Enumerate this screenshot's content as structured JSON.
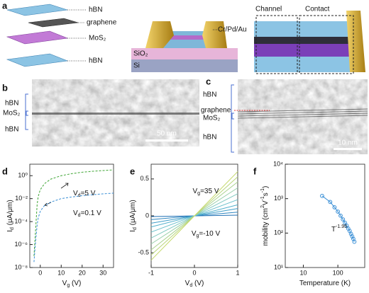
{
  "panel_labels": [
    "a",
    "b",
    "c",
    "d",
    "e",
    "f"
  ],
  "panel_a": {
    "stack_labels": [
      "hBN",
      "graphene",
      "MoS₂",
      "hBN"
    ],
    "device_labels": [
      "Cr/Pd/Au",
      "SiO₂",
      "Si"
    ],
    "region_labels": [
      "Channel",
      "Contact"
    ]
  },
  "panel_b": {
    "layer_labels": [
      "hBN",
      "MoS₂",
      "hBN"
    ],
    "scale_bar": "50 nm"
  },
  "panel_c": {
    "layer_labels": [
      "hBN",
      "graphene",
      "MoS₂",
      "hBN"
    ],
    "scale_bar": "10 nm"
  },
  "chart_data": [
    {
      "type": "line",
      "xlim": [
        -5,
        35
      ],
      "xticks": [
        0,
        10,
        20,
        30
      ],
      "ylim": [
        1e-08,
        10
      ],
      "ylog": true,
      "yticks": [
        {
          "value": 1,
          "label": "10⁰"
        },
        {
          "value": 0.01,
          "label": "10⁻²"
        },
        {
          "value": 0.0001,
          "label": "10⁻⁴"
        },
        {
          "value": 1e-06,
          "label": "10⁻⁶"
        },
        {
          "value": 1e-08,
          "label": "10⁻⁸"
        }
      ],
      "x_label": [
        {
          "text": "V"
        },
        {
          "sub": "g"
        },
        {
          "text": " (V)"
        }
      ],
      "y_label": [
        {
          "text": "I"
        },
        {
          "sub": "d"
        },
        {
          "text": " (μA/μm)"
        }
      ],
      "x": [
        -3,
        -2.5,
        -2,
        -1.5,
        -1,
        0,
        2,
        5,
        10,
        15,
        20,
        25,
        30,
        35
      ],
      "series": [
        {
          "name": [
            {
              "text": "V"
            },
            {
              "sub": "d"
            },
            {
              "text": "=5 V"
            }
          ],
          "color": "#3fa535",
          "dashed": true,
          "values": [
            1e-07,
            3e-06,
            0.0001,
            0.003,
            0.015,
            0.06,
            0.2,
            0.5,
            1.0,
            1.5,
            2.0,
            2.4,
            2.8,
            3.2
          ]
        },
        {
          "name": [
            {
              "text": "V"
            },
            {
              "sub": "d"
            },
            {
              "text": "=0.1 V"
            }
          ],
          "color": "#3a8fd6",
          "dashed": true,
          "values": [
            3e-08,
            5e-07,
            5e-06,
            5e-05,
            0.0002,
            0.0008,
            0.0025,
            0.005,
            0.01,
            0.014,
            0.018,
            0.022,
            0.026,
            0.03
          ]
        }
      ]
    },
    {
      "type": "line",
      "xlim": [
        -1,
        1
      ],
      "xticks": [
        -1,
        0,
        1
      ],
      "ylim": [
        -0.7,
        0.7
      ],
      "yticks": [
        -0.5,
        0,
        0.5
      ],
      "x_label": [
        {
          "text": "V"
        },
        {
          "sub": "d"
        },
        {
          "text": " (V)"
        }
      ],
      "y_label": [
        {
          "text": "I"
        },
        {
          "sub": "d"
        },
        {
          "text": " (μA/μm)"
        }
      ],
      "annotations": [
        [
          {
            "text": "V"
          },
          {
            "sub": "g"
          },
          {
            "text": "=35 V"
          }
        ],
        [
          {
            "text": "V"
          },
          {
            "sub": "g"
          },
          {
            "text": "=-10 V"
          }
        ]
      ],
      "x": [
        -1,
        1
      ],
      "series": [
        {
          "color": "#1f6fb4",
          "values": [
            -0.01,
            0.01
          ]
        },
        {
          "color": "#2f86c0",
          "values": [
            -0.05,
            0.05
          ]
        },
        {
          "color": "#3f9dc8",
          "values": [
            -0.1,
            0.1
          ]
        },
        {
          "color": "#52b0cc",
          "values": [
            -0.15,
            0.15
          ]
        },
        {
          "color": "#68bfca",
          "values": [
            -0.22,
            0.22
          ]
        },
        {
          "color": "#80c9c0",
          "values": [
            -0.3,
            0.3
          ]
        },
        {
          "color": "#98cfaa",
          "values": [
            -0.38,
            0.38
          ]
        },
        {
          "color": "#a9d28e",
          "values": [
            -0.46,
            0.46
          ]
        },
        {
          "color": "#b8d57a",
          "values": [
            -0.53,
            0.53
          ]
        },
        {
          "color": "#c4d86a",
          "values": [
            -0.6,
            0.6
          ]
        }
      ]
    },
    {
      "type": "line",
      "markers": true,
      "xlog": true,
      "ylog": true,
      "xlim": [
        3,
        600
      ],
      "xticks": [
        10,
        100
      ],
      "ylim": [
        10,
        10000
      ],
      "yticks": [
        {
          "value": 10,
          "label": "10¹"
        },
        {
          "value": 100,
          "label": "10²"
        },
        {
          "value": 1000,
          "label": "10³"
        },
        {
          "value": 10000,
          "label": "10⁴"
        }
      ],
      "x_label": [
        {
          "text": "Temperature (K)"
        }
      ],
      "y_label": [
        {
          "text": "mobility (cm"
        },
        {
          "sup": "2"
        },
        {
          "text": "V"
        },
        {
          "sup": "-1"
        },
        {
          "text": "s"
        },
        {
          "sup": "-1"
        },
        {
          "text": ")"
        }
      ],
      "annotations": [
        [
          {
            "text": "T"
          },
          {
            "sup": "-1.95"
          }
        ]
      ],
      "x": [
        35,
        60,
        80,
        100,
        120,
        140,
        160,
        180,
        200,
        220,
        240,
        260,
        280,
        300
      ],
      "series": [
        {
          "color": "#3a8fd6",
          "values": [
            1200,
            800,
            560,
            420,
            320,
            250,
            200,
            165,
            135,
            115,
            95,
            80,
            68,
            56
          ]
        }
      ]
    }
  ]
}
